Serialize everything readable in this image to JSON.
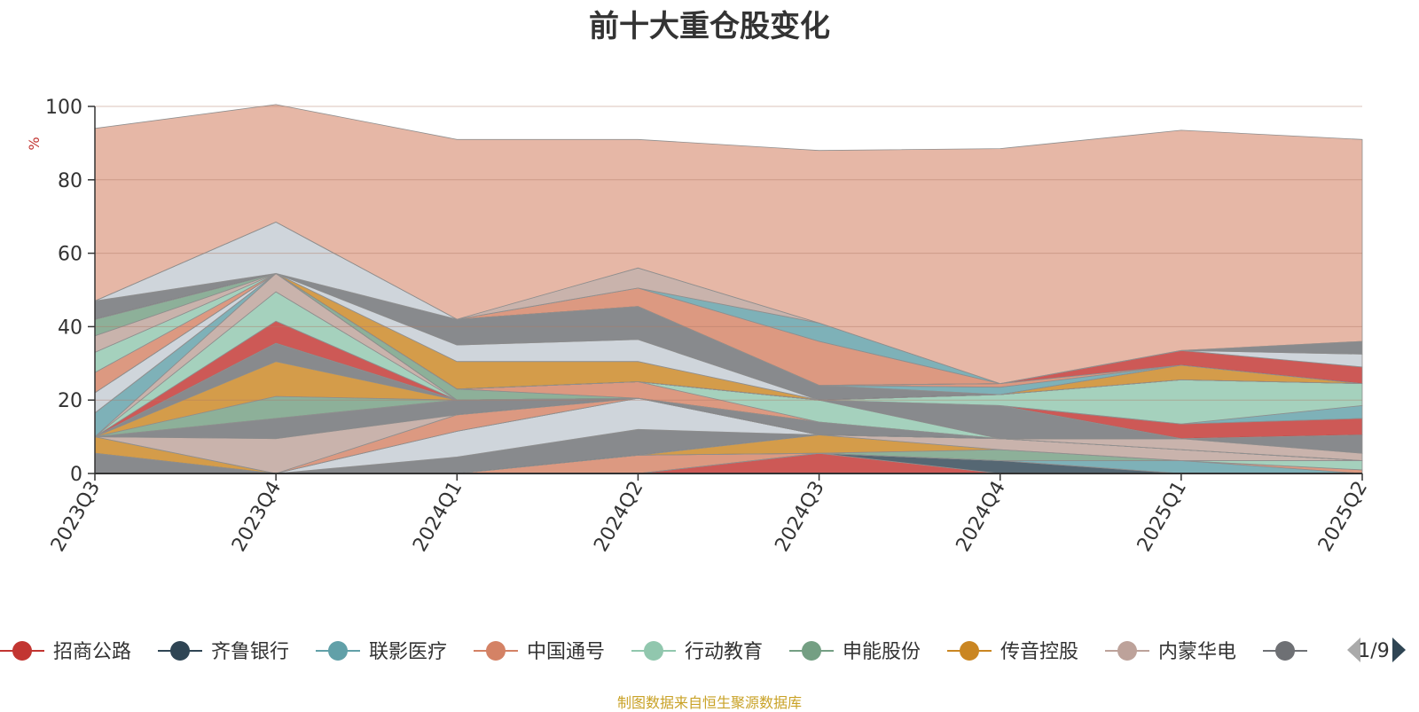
{
  "chart_data": {
    "type": "area",
    "title": "前十大重仓股变化",
    "ylabel": "%",
    "ylim": [
      0,
      100
    ],
    "yticks": [
      0,
      20,
      40,
      60,
      80,
      100
    ],
    "categories": [
      "2023Q3",
      "2023Q4",
      "2024Q1",
      "2024Q2",
      "2024Q3",
      "2024Q4",
      "2025Q1",
      "2025Q2"
    ],
    "stacked": true,
    "grid": true,
    "legend_position": "bottom",
    "legend_page": "1/9",
    "series": [
      {
        "name": "招商公路",
        "color": "#c23531",
        "values": [
          0,
          0,
          0,
          0,
          5.5,
          0,
          0,
          0
        ]
      },
      {
        "name": "齐鲁银行",
        "color": "#2f4554",
        "values": [
          0,
          0,
          0,
          0,
          0,
          3.5,
          0,
          0
        ]
      },
      {
        "name": "联影医疗",
        "color": "#61a0a8",
        "values": [
          0,
          0,
          0,
          0,
          0,
          0,
          3.5,
          0
        ]
      },
      {
        "name": "中国通号",
        "color": "#d48265",
        "values": [
          0,
          0,
          0,
          5,
          0,
          0,
          0,
          1
        ]
      },
      {
        "name": "行动教育",
        "color": "#91c7ae",
        "values": [
          0,
          0,
          0,
          0,
          0,
          0,
          0,
          2.5
        ]
      },
      {
        "name": "申能股份",
        "color": "#749f83",
        "values": [
          0,
          0,
          0,
          0,
          0,
          3,
          0,
          0
        ]
      },
      {
        "name": "传音控股",
        "color": "#ca8622",
        "values": [
          0,
          0,
          0,
          0,
          5,
          0,
          0,
          0
        ]
      },
      {
        "name": "内蒙华电",
        "color": "#bda29a",
        "values": [
          0,
          0,
          0,
          0,
          0,
          3,
          3,
          0
        ]
      },
      {
        "name": "",
        "color": "#6e7074",
        "values": [
          5.5,
          0,
          4.5,
          7,
          0,
          0,
          0,
          0
        ]
      },
      {
        "name": "",
        "color": "#c4ccd3",
        "values": [
          0,
          0,
          7,
          8.5,
          0,
          0,
          0,
          0
        ]
      },
      {
        "name": "",
        "color": "#ca8622",
        "values": [
          4.5,
          0,
          0,
          0,
          0,
          0,
          0,
          0
        ]
      },
      {
        "name": "",
        "color": "#d48265",
        "values": [
          0,
          0,
          4.5,
          0,
          0,
          0,
          0,
          0
        ]
      },
      {
        "name": "",
        "color": "#bda29a",
        "values": [
          0,
          9.5,
          0,
          0,
          0,
          0,
          3,
          2
        ]
      },
      {
        "name": "",
        "color": "#6e7074",
        "values": [
          0,
          5.5,
          4,
          0,
          3.5,
          0,
          0,
          5
        ]
      },
      {
        "name": "",
        "color": "#749f83",
        "values": [
          0,
          6,
          0,
          0,
          0,
          0,
          0,
          0
        ]
      },
      {
        "name": "",
        "color": "#ca8622",
        "values": [
          0,
          9.5,
          0,
          0,
          0,
          0,
          0,
          0
        ]
      },
      {
        "name": "",
        "color": "#6e7074",
        "values": [
          0,
          5,
          0,
          0,
          0,
          0,
          0,
          0
        ]
      },
      {
        "name": "",
        "color": "#c23531",
        "values": [
          0,
          6,
          0,
          0,
          0,
          0,
          0,
          0
        ]
      },
      {
        "name": "",
        "color": "#91c7ae",
        "values": [
          0,
          8,
          0,
          0,
          0,
          0,
          0,
          0
        ]
      },
      {
        "name": "",
        "color": "#bda29a",
        "values": [
          0,
          5,
          0,
          0,
          0,
          0,
          0,
          0
        ]
      },
      {
        "name": "",
        "color": "#61a0a8",
        "values": [
          6.5,
          0,
          0,
          0,
          0,
          0,
          0,
          0
        ]
      },
      {
        "name": "",
        "color": "#2f4554",
        "values": [
          0,
          0,
          0,
          0,
          0,
          0,
          0,
          0
        ]
      },
      {
        "name": "",
        "color": "#749f83",
        "values": [
          0,
          0,
          3,
          0,
          0,
          0,
          0,
          0
        ]
      },
      {
        "name": "",
        "color": "#d48265",
        "values": [
          0,
          0,
          0,
          4.5,
          0,
          0,
          0,
          0
        ]
      },
      {
        "name": "",
        "color": "#91c7ae",
        "values": [
          0,
          0,
          0,
          0,
          6,
          0,
          0,
          0
        ]
      },
      {
        "name": "",
        "color": "#6e7074",
        "values": [
          0,
          0,
          0,
          0,
          0,
          9,
          0,
          0
        ]
      },
      {
        "name": "",
        "color": "#c4ccd3",
        "values": [
          5.5,
          0,
          0,
          0,
          0,
          0,
          0,
          0
        ]
      },
      {
        "name": "",
        "color": "#c23531",
        "values": [
          0,
          0,
          0,
          0,
          0,
          0,
          4,
          4.5
        ]
      },
      {
        "name": "",
        "color": "#61a0a8",
        "values": [
          0,
          0,
          0,
          0,
          0,
          0,
          0,
          3.5
        ]
      },
      {
        "name": "",
        "color": "#91c7ae",
        "values": [
          0,
          0,
          0,
          0,
          0,
          3,
          12,
          6
        ]
      },
      {
        "name": "",
        "color": "#d48265",
        "values": [
          5.5,
          0,
          0,
          0,
          0,
          0,
          0,
          0
        ]
      },
      {
        "name": "",
        "color": "#91c7ae",
        "values": [
          5.5,
          0,
          0,
          0,
          0,
          0,
          0,
          0
        ]
      },
      {
        "name": "",
        "color": "#bda29a",
        "values": [
          4.5,
          0,
          0,
          0,
          0,
          0,
          0,
          0
        ]
      },
      {
        "name": "",
        "color": "#749f83",
        "values": [
          4.5,
          0,
          0,
          0,
          0,
          0,
          0,
          0
        ]
      },
      {
        "name": "",
        "color": "#ca8622",
        "values": [
          0,
          0,
          7.5,
          5.5,
          0,
          0,
          4,
          0
        ]
      },
      {
        "name": "",
        "color": "#c4ccd3",
        "values": [
          0,
          0,
          4.5,
          6,
          0,
          0,
          0,
          0
        ]
      },
      {
        "name": "",
        "color": "#6e7074",
        "values": [
          0,
          0,
          7,
          9,
          4,
          0,
          0,
          0
        ]
      },
      {
        "name": "",
        "color": "#61a0a8",
        "values": [
          0,
          0,
          0,
          0,
          0,
          2,
          0,
          0
        ]
      },
      {
        "name": "",
        "color": "#d48265",
        "values": [
          0,
          0,
          0,
          0,
          0,
          1,
          0,
          0
        ]
      },
      {
        "name": "",
        "color": "#c23531",
        "values": [
          0,
          0,
          0,
          0,
          0,
          0,
          4,
          4.5
        ]
      },
      {
        "name": "",
        "color": "#c4ccd3",
        "values": [
          0,
          0,
          0,
          0,
          0,
          0,
          0,
          3.5
        ]
      },
      {
        "name": "",
        "color": "#6e7074",
        "values": [
          0,
          0,
          0,
          0,
          0,
          0,
          0,
          3.5
        ]
      },
      {
        "name": "",
        "color": "#6e7074",
        "values": [
          5,
          0,
          0,
          0,
          0,
          0,
          0,
          0
        ]
      },
      {
        "name": "",
        "color": "#c4ccd3",
        "values": [
          0,
          14,
          0,
          0,
          0,
          0,
          0,
          0
        ]
      },
      {
        "name": "",
        "color": "#d48265",
        "values": [
          0,
          0,
          0,
          5,
          12,
          0,
          0,
          0
        ]
      },
      {
        "name": "",
        "color": "#61a0a8",
        "values": [
          0,
          0,
          0,
          0,
          5,
          0,
          0,
          0
        ]
      },
      {
        "name": "",
        "color": "#bda29a",
        "values": [
          0,
          0,
          0,
          5.5,
          0,
          0,
          0,
          0
        ]
      },
      {
        "name": "",
        "color": "#e0a793",
        "values": [
          47,
          32,
          49,
          35,
          47,
          64,
          60,
          55
        ]
      }
    ]
  },
  "source_note": "制图数据来自恒生聚源数据库",
  "legend_pager": {
    "page": "1/9"
  }
}
